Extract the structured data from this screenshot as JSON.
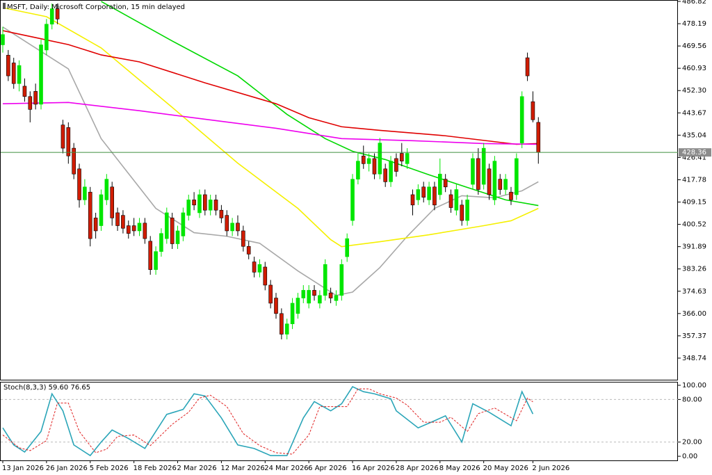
{
  "chart_data": [
    {
      "type": "candlestick",
      "title": "MSFT, Daily: Microsoft Corporation, 15 min delayed",
      "categories": [
        "13 Jan 2026",
        null,
        null,
        null,
        null,
        null,
        null,
        null,
        "26 Jan 2026",
        null,
        null,
        null,
        null,
        null,
        null,
        null,
        "5 Feb 2026",
        null,
        null,
        null,
        null,
        null,
        null,
        null,
        "18 Feb 2026",
        null,
        null,
        null,
        null,
        null,
        null,
        null,
        "2 Mar 2026",
        null,
        null,
        null,
        null,
        null,
        null,
        null,
        "12 Mar 2026",
        null,
        null,
        null,
        null,
        null,
        null,
        null,
        "24 Mar 2026",
        null,
        null,
        null,
        null,
        null,
        null,
        null,
        "6 Apr 2026",
        null,
        null,
        null,
        null,
        null,
        null,
        null,
        "16 Apr 2026",
        null,
        null,
        null,
        null,
        null,
        null,
        null,
        "28 Apr 2026",
        null,
        null,
        null,
        null,
        null,
        null,
        null,
        "8 May 2026",
        null,
        null,
        null,
        null,
        null,
        null,
        null,
        "20 May 2026",
        null,
        null,
        null,
        null,
        null,
        null,
        null,
        null,
        "2 Jun 2026",
        null
      ],
      "candles": [
        [
          470,
          477,
          467,
          474
        ],
        [
          466,
          468,
          456,
          458
        ],
        [
          463,
          465,
          453,
          455
        ],
        [
          455,
          464,
          452,
          462
        ],
        [
          454,
          457,
          448,
          450
        ],
        [
          450,
          452,
          440,
          445
        ],
        [
          452,
          455,
          445,
          447
        ],
        [
          447,
          472,
          445,
          470
        ],
        [
          468,
          480,
          466,
          478
        ],
        [
          478,
          486,
          476,
          484
        ],
        [
          484,
          486,
          478,
          480
        ],
        [
          439,
          441,
          428,
          430
        ],
        [
          438,
          440,
          424,
          427
        ],
        [
          430,
          432,
          418,
          420
        ],
        [
          422,
          424,
          407,
          410
        ],
        [
          410,
          418,
          408,
          415
        ],
        [
          413,
          415,
          392,
          395
        ],
        [
          403,
          405,
          395,
          398
        ],
        [
          400,
          414,
          398,
          412
        ],
        [
          410,
          420,
          408,
          418
        ],
        [
          415,
          417,
          400,
          403
        ],
        [
          405,
          407,
          398,
          400
        ],
        [
          404,
          406,
          397,
          399
        ],
        [
          400,
          402,
          395,
          397
        ],
        [
          400,
          403,
          396,
          398
        ],
        [
          398,
          403,
          396,
          401
        ],
        [
          401,
          403,
          393,
          395
        ],
        [
          394,
          396,
          381,
          383
        ],
        [
          383,
          392,
          381,
          390
        ],
        [
          390,
          399,
          388,
          397
        ],
        [
          395,
          407,
          393,
          405
        ],
        [
          403,
          405,
          391,
          393
        ],
        [
          393,
          400,
          391,
          398
        ],
        [
          396,
          407,
          394,
          405
        ],
        [
          404,
          412,
          402,
          410
        ],
        [
          410,
          413,
          406,
          408
        ],
        [
          405,
          414,
          403,
          412
        ],
        [
          412,
          414,
          404,
          406
        ],
        [
          406,
          412,
          404,
          410
        ],
        [
          410,
          412,
          404,
          406
        ],
        [
          406,
          408,
          401,
          403
        ],
        [
          404,
          406,
          396,
          398
        ],
        [
          398,
          403,
          396,
          401
        ],
        [
          401,
          404,
          396,
          398
        ],
        [
          398,
          400,
          390,
          392
        ],
        [
          392,
          394,
          387,
          389
        ],
        [
          386,
          388,
          380,
          382
        ],
        [
          382,
          387,
          380,
          385
        ],
        [
          384,
          386,
          375,
          377
        ],
        [
          377,
          379,
          368,
          370
        ],
        [
          372,
          374,
          364,
          366
        ],
        [
          366,
          368,
          356,
          358
        ],
        [
          358,
          364,
          356,
          362
        ],
        [
          362,
          372,
          360,
          370
        ],
        [
          366,
          374,
          364,
          372
        ],
        [
          372,
          377,
          370,
          375
        ],
        [
          370,
          377,
          368,
          375
        ],
        [
          375,
          377,
          371,
          373
        ],
        [
          370,
          375,
          368,
          373
        ],
        [
          373,
          387,
          371,
          385
        ],
        [
          374,
          376,
          370,
          372
        ],
        [
          371,
          375,
          369,
          373
        ],
        [
          373,
          387,
          371,
          385
        ],
        [
          388,
          397,
          386,
          395
        ],
        [
          402,
          420,
          400,
          418
        ],
        [
          418,
          428,
          416,
          425
        ],
        [
          427,
          431,
          422,
          424
        ],
        [
          424,
          428,
          421,
          426
        ],
        [
          426,
          428,
          418,
          420
        ],
        [
          420,
          434,
          418,
          432
        ],
        [
          422,
          424,
          415,
          417
        ],
        [
          417,
          427,
          415,
          425
        ],
        [
          426,
          428,
          419,
          421
        ],
        [
          428,
          432,
          423,
          425
        ],
        [
          424,
          430,
          422,
          428
        ],
        [
          412,
          414,
          404,
          408
        ],
        [
          410,
          416,
          408,
          414
        ],
        [
          415,
          417,
          409,
          411
        ],
        [
          410,
          417,
          408,
          415
        ],
        [
          415,
          417,
          406,
          408
        ],
        [
          412,
          426,
          410,
          420
        ],
        [
          418,
          420,
          413,
          415
        ],
        [
          412,
          414,
          405,
          407
        ],
        [
          406,
          416,
          404,
          414
        ],
        [
          408,
          410,
          400,
          402
        ],
        [
          402,
          412,
          400,
          410
        ],
        [
          416,
          428,
          414,
          426
        ],
        [
          426,
          430,
          412,
          414
        ],
        [
          416,
          432,
          414,
          430
        ],
        [
          422,
          424,
          410,
          412
        ],
        [
          410,
          427,
          408,
          425
        ],
        [
          418,
          420,
          412,
          414
        ],
        [
          414,
          420,
          412,
          418
        ],
        [
          413,
          415,
          408,
          410
        ],
        [
          412,
          428,
          410,
          426
        ],
        [
          432,
          452,
          430,
          450
        ],
        [
          465,
          467,
          456,
          458
        ],
        [
          448,
          452,
          440,
          441
        ],
        [
          440,
          442,
          424,
          428.36
        ]
      ],
      "up_color": "#00e600",
      "down_color": "#d01c00",
      "lines": [
        {
          "color": "#a8a8a8",
          "x": [
            0,
            12,
            18,
            23,
            28,
            35,
            41,
            47,
            54,
            61,
            64,
            69,
            74,
            79,
            84,
            90,
            95,
            98
          ],
          "values": [
            476.9,
            460.7,
            433.7,
            420.2,
            406.7,
            397.3,
            395.9,
            393.2,
            382.5,
            373,
            374.3,
            383.8,
            395.9,
            406.7,
            411.6,
            410.8,
            413.5,
            417
          ]
        },
        {
          "color": "#f5f000",
          "x": [
            0,
            8,
            18,
            31,
            43,
            54,
            60,
            62,
            69,
            78,
            88,
            93,
            98
          ],
          "values": [
            484.4,
            480.9,
            468.8,
            445.8,
            424.2,
            406.7,
            394.6,
            391.9,
            393.8,
            396.5,
            400,
            401.9,
            406.7
          ]
        },
        {
          "color": "#00d800",
          "x": [
            18,
            31,
            43,
            52,
            59,
            64,
            70,
            78,
            85,
            92,
            98
          ],
          "values": [
            486.8,
            471.5,
            458,
            443.1,
            433.7,
            428.8,
            425.6,
            419.7,
            414.8,
            410,
            407.8
          ]
        },
        {
          "color": "#e00000",
          "x": [
            0,
            6,
            12,
            18,
            25,
            37,
            50,
            56,
            62,
            69,
            81,
            94,
            98
          ],
          "values": [
            475.5,
            472.8,
            470.1,
            466.1,
            463.4,
            455.3,
            447.2,
            441.8,
            438.3,
            436.9,
            434.8,
            431.5,
            431.8
          ]
        },
        {
          "color": "#ee00ee",
          "x": [
            0,
            12,
            25,
            37,
            50,
            62,
            75,
            88,
            98
          ],
          "values": [
            447.2,
            447.7,
            444.5,
            441.2,
            437.7,
            433.7,
            432.9,
            431.8,
            431.5
          ]
        }
      ],
      "last_price": {
        "value": 428.36,
        "color": "#3f8f3f"
      },
      "ylim": [
        340.38,
        487.09
      ],
      "yticks": [
        486.82,
        478.19,
        469.56,
        460.93,
        {
          "value": 452.3,
          "label": "452.30"
        },
        443.67,
        435.04,
        426.41,
        417.78,
        409.15,
        400.52,
        391.89,
        383.26,
        374.63,
        {
          "value": 366,
          "label": "366.00"
        },
        357.37,
        348.74
      ]
    },
    {
      "type": "line",
      "title": "Stoch(8,3,3) 59.60 76.65",
      "lines": [
        {
          "color": "#2aa5b8",
          "dashed": false,
          "x": [
            0,
            2,
            4,
            7,
            9,
            11,
            13,
            16,
            18,
            20,
            23,
            26,
            30,
            33,
            35,
            37,
            40,
            43,
            46,
            49,
            52,
            55,
            57,
            60,
            62,
            64,
            66,
            68,
            71,
            72,
            76,
            79,
            81,
            84,
            86,
            89,
            93,
            95,
            97
          ],
          "values": [
            40,
            16,
            6,
            35,
            88,
            64,
            16,
            1,
            20,
            37,
            25,
            11,
            59,
            66,
            88,
            85,
            54,
            16,
            11,
            1,
            1,
            54,
            77,
            64,
            74,
            98,
            91,
            88,
            81,
            64,
            40,
            50,
            57,
            20,
            74,
            62,
            43,
            91,
            59.6
          ]
        },
        {
          "color": "#e02020",
          "dashed": true,
          "x": [
            0,
            3,
            5,
            8,
            10,
            12,
            14,
            17,
            19,
            21,
            24,
            27,
            31,
            34,
            36,
            38,
            41,
            44,
            47,
            50,
            53,
            56,
            58,
            61,
            63,
            65,
            67,
            69,
            72,
            74,
            77,
            80,
            82,
            85,
            87,
            90,
            94,
            96,
            97
          ],
          "values": [
            30,
            12,
            8,
            22,
            75,
            75,
            35,
            5,
            10,
            28,
            30,
            15,
            45,
            62,
            82,
            86,
            70,
            32,
            15,
            5,
            3,
            30,
            70,
            70,
            70,
            95,
            95,
            88,
            82,
            72,
            48,
            48,
            55,
            35,
            60,
            68,
            50,
            82,
            76.65
          ]
        }
      ],
      "level_lines": [
        80,
        20
      ],
      "ylim": [
        -5.8,
        103.9
      ],
      "yticks": [
        {
          "value": 100,
          "label": "100.00"
        },
        {
          "value": 80,
          "label": "80.00"
        },
        {
          "value": 20,
          "label": "20.00"
        },
        {
          "value": 0,
          "label": "0.00"
        }
      ]
    }
  ]
}
